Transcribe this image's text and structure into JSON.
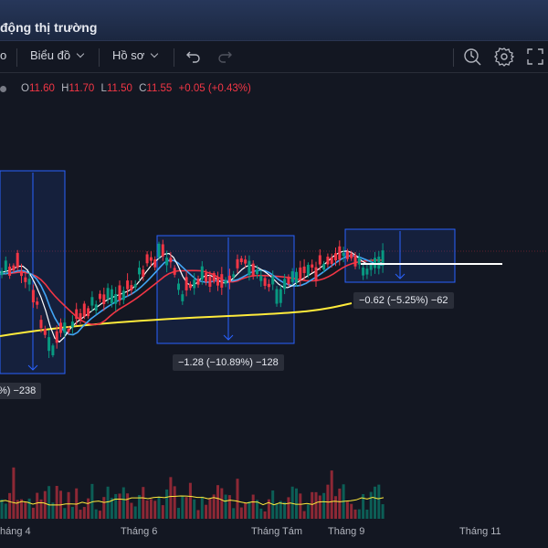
{
  "window": {
    "title": "động thị trường"
  },
  "toolbar": {
    "left_fragment": "o",
    "chart_type_label": "Biểu đồ",
    "profile_label": "Hồ sơ"
  },
  "legend": {
    "open_label": "O",
    "open": "11.60",
    "high_label": "H",
    "high": "11.70",
    "low_label": "L",
    "low": "11.50",
    "close_label": "C",
    "close": "11.55",
    "change": "+0.05 (+0.43%)"
  },
  "measurements": [
    {
      "text": "%) −238"
    },
    {
      "text": "−1.28 (−10.89%) −128"
    },
    {
      "text": "−0.62 (−5.25%) −62"
    }
  ],
  "x_axis": {
    "labels": [
      "háng 4",
      "Tháng 6",
      "Tháng Tám",
      "Tháng 9",
      "Tháng 11"
    ]
  },
  "colors": {
    "up": "#089981",
    "down": "#f23645",
    "ma_fast": "#ffffff",
    "ma_mid": "#42a5f5",
    "ma_slow": "#f23645",
    "ma_long": "#ffeb3b",
    "range_box": "#2962ff"
  },
  "icons": [
    "undo-icon",
    "redo-icon",
    "replay-icon",
    "gear-icon",
    "fullscreen-icon"
  ]
}
